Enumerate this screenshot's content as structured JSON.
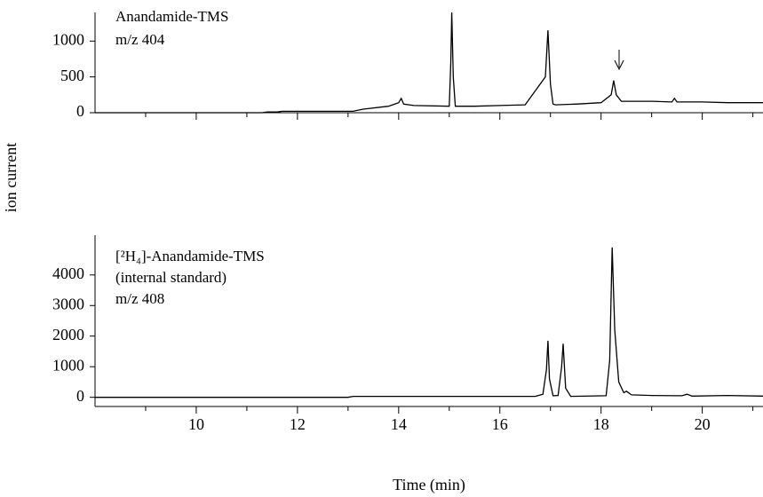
{
  "ylabel": "ion current",
  "chart_data": [
    {
      "type": "line",
      "annotations": [
        "Anandamide-TMS",
        "m/z 404"
      ],
      "x": [
        8,
        11.3,
        11.4,
        11.6,
        11.7,
        13.1,
        13.3,
        13.8,
        14.0,
        14.05,
        14.1,
        14.3,
        15.0,
        15.03,
        15.05,
        15.08,
        15.12,
        15.5,
        16.0,
        16.5,
        16.9,
        16.95,
        17.0,
        17.05,
        17.1,
        17.5,
        18.0,
        18.2,
        18.25,
        18.3,
        18.4,
        19.0,
        19.4,
        19.45,
        19.5,
        20.0,
        20.5,
        21.2
      ],
      "values": [
        0,
        0,
        10,
        10,
        20,
        20,
        50,
        90,
        140,
        200,
        120,
        100,
        90,
        700,
        1400,
        500,
        90,
        90,
        100,
        110,
        500,
        1150,
        400,
        120,
        110,
        120,
        140,
        250,
        450,
        250,
        160,
        160,
        150,
        200,
        150,
        150,
        140,
        140
      ],
      "color": "#000000",
      "xlim": [
        8,
        21.2
      ],
      "ylim": [
        0,
        1400
      ],
      "yticks": [
        0,
        500,
        1000
      ]
    },
    {
      "type": "line",
      "annotations": [
        "[²H₄]-Anandamide-TMS",
        "(internal standard)",
        "m/z 408"
      ],
      "xlabel": "Time (min)",
      "x": [
        8,
        13.0,
        13.1,
        16.7,
        16.85,
        16.92,
        16.95,
        16.98,
        17.05,
        17.15,
        17.22,
        17.25,
        17.3,
        17.4,
        18.1,
        18.17,
        18.22,
        18.27,
        18.35,
        18.45,
        18.5,
        18.6,
        19.0,
        19.6,
        19.7,
        19.8,
        20.5,
        21.2
      ],
      "values": [
        0,
        0,
        30,
        30,
        100,
        900,
        1850,
        600,
        50,
        60,
        1000,
        1750,
        300,
        30,
        50,
        1200,
        4900,
        2200,
        500,
        150,
        200,
        80,
        60,
        50,
        100,
        40,
        60,
        40
      ],
      "color": "#000000",
      "xlim": [
        8,
        21.2
      ],
      "ylim": [
        -300,
        5300
      ],
      "yticks": [
        0,
        1000,
        2000,
        3000,
        4000
      ],
      "xticks": [
        10,
        12,
        14,
        16,
        18,
        20
      ],
      "xminorticks": [
        9,
        11,
        13,
        15,
        17,
        19,
        21
      ]
    }
  ]
}
